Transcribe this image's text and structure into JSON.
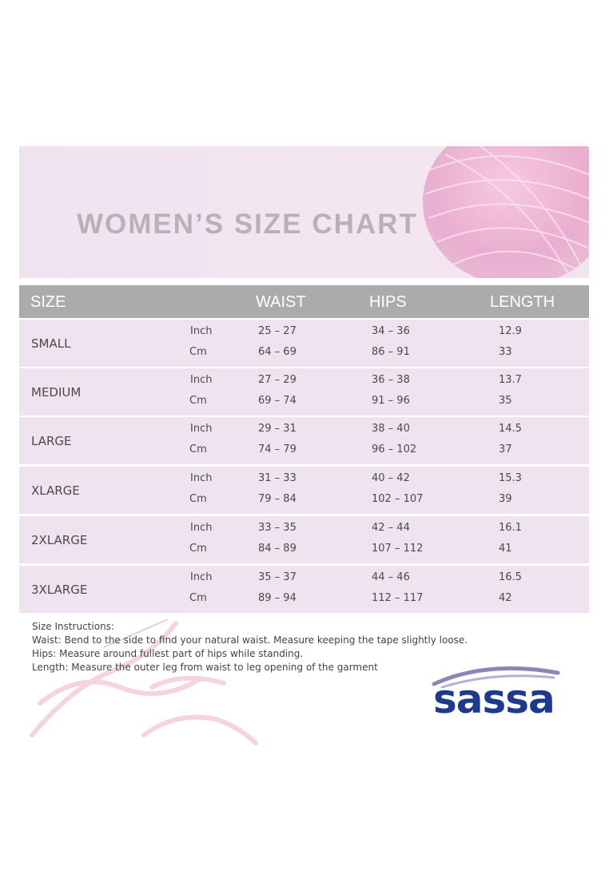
{
  "title": "WOMEN’S SIZE CHART",
  "headers": {
    "size": "SIZE",
    "waist": "WAIST",
    "hips": "HIPS",
    "length": "LENGTH"
  },
  "units": {
    "inch": "Inch",
    "cm": "Cm"
  },
  "rows": [
    {
      "size": "SMALL",
      "waist_in": "25 – 27",
      "waist_cm": "64 – 69",
      "hips_in": "34 – 36",
      "hips_cm": "86 – 91",
      "length_in": "12.9",
      "length_cm": "33"
    },
    {
      "size": "MEDIUM",
      "waist_in": "27 – 29",
      "waist_cm": "69 – 74",
      "hips_in": "36 – 38",
      "hips_cm": "91 – 96",
      "length_in": "13.7",
      "length_cm": "35"
    },
    {
      "size": "LARGE",
      "waist_in": "29 – 31",
      "waist_cm": "74 – 79",
      "hips_in": "38 – 40",
      "hips_cm": "96 – 102",
      "length_in": "14.5",
      "length_cm": "37"
    },
    {
      "size": "XLARGE",
      "waist_in": "31 – 33",
      "waist_cm": "79 – 84",
      "hips_in": "40 –  42",
      "hips_cm": "102 – 107",
      "length_in": "15.3",
      "length_cm": "39"
    },
    {
      "size": "2XLARGE",
      "waist_in": "33 – 35",
      "waist_cm": "84 – 89",
      "hips_in": "42 –  44",
      "hips_cm": "107 – 112",
      "length_in": "16.1",
      "length_cm": "41"
    },
    {
      "size": "3XLARGE",
      "waist_in": "35 – 37",
      "waist_cm": "89 – 94",
      "hips_in": "44 –  46",
      "hips_cm": "112 – 117",
      "length_in": "16.5",
      "length_cm": "42"
    }
  ],
  "instructions": [
    "Size Instructions:",
    "Waist: Bend to the side to find your natural waist. Measure keeping the tape slightly loose.",
    "Hips: Measure around fullest part of hips while standing.",
    "Length: Measure the outer leg from waist to leg opening of the garment"
  ],
  "logo": {
    "text": "sassa"
  },
  "colors": {
    "banner": "#efe3ef",
    "header": "#ababab",
    "row": "#efe3ef",
    "logo": "#1f3a8a",
    "swoosh": "#8a86b8"
  }
}
